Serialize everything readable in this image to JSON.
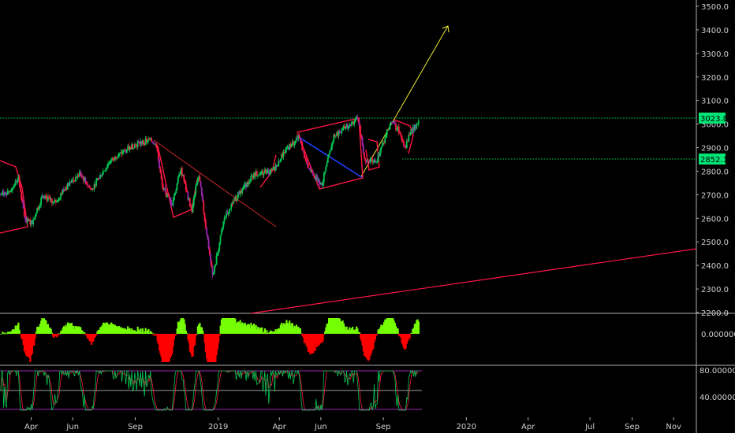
{
  "chart_data": [
    {
      "type": "candlestick",
      "pane": "price",
      "y_ticks": [
        2200,
        2300,
        2400,
        2500,
        2600,
        2700,
        2800,
        2900,
        3000,
        3100,
        3200,
        3300,
        3400,
        3500
      ],
      "y_tick_labels": [
        "2200.0",
        "2300.0",
        "2400.0",
        "2500.0",
        "2600.0",
        "2700.0",
        "2800.0",
        "2900.0",
        "3000.0",
        "3100.0",
        "3200.0",
        "3300.0",
        "3400.0",
        "3500.0"
      ],
      "ylim": [
        2190,
        3510
      ],
      "price_labels": [
        {
          "value": 3023.8,
          "label": "3023.8"
        },
        {
          "value": 2852.1,
          "label": "2852.1"
        }
      ],
      "close_path": [
        [
          "2018-02-15",
          2700
        ],
        [
          "2018-03-01",
          2720
        ],
        [
          "2018-03-13",
          2770
        ],
        [
          "2018-03-23",
          2590
        ],
        [
          "2018-04-02",
          2580
        ],
        [
          "2018-04-18",
          2700
        ],
        [
          "2018-05-04",
          2660
        ],
        [
          "2018-05-21",
          2730
        ],
        [
          "2018-06-12",
          2790
        ],
        [
          "2018-06-28",
          2720
        ],
        [
          "2018-07-25",
          2840
        ],
        [
          "2018-08-29",
          2910
        ],
        [
          "2018-09-20",
          2930
        ],
        [
          "2018-10-01",
          2925
        ],
        [
          "2018-10-11",
          2730
        ],
        [
          "2018-10-25",
          2660
        ],
        [
          "2018-11-07",
          2810
        ],
        [
          "2018-11-23",
          2630
        ],
        [
          "2018-12-03",
          2790
        ],
        [
          "2018-12-24",
          2350
        ],
        [
          "2019-01-10",
          2600
        ],
        [
          "2019-02-01",
          2710
        ],
        [
          "2019-02-25",
          2790
        ],
        [
          "2019-03-22",
          2800
        ],
        [
          "2019-04-10",
          2890
        ],
        [
          "2019-04-30",
          2945
        ],
        [
          "2019-05-13",
          2810
        ],
        [
          "2019-06-03",
          2745
        ],
        [
          "2019-06-20",
          2950
        ],
        [
          "2019-07-26",
          3025
        ],
        [
          "2019-08-05",
          2840
        ],
        [
          "2019-08-23",
          2850
        ],
        [
          "2019-09-12",
          3010
        ],
        [
          "2019-09-25",
          2970
        ],
        [
          "2019-10-02",
          2890
        ],
        [
          "2019-10-11",
          2970
        ],
        [
          "2019-10-24",
          3010
        ]
      ],
      "x_ticks": [
        {
          "date": "2018-04-01",
          "label": "Apr"
        },
        {
          "date": "2018-06-01",
          "label": "Jun"
        },
        {
          "date": "2018-09-01",
          "label": "Sep"
        },
        {
          "date": "2019-01-01",
          "label": "2019"
        },
        {
          "date": "2019-04-01",
          "label": "Apr"
        },
        {
          "date": "2019-06-01",
          "label": "Jun"
        },
        {
          "date": "2019-09-01",
          "label": "Sep"
        },
        {
          "date": "2020-01-01",
          "label": "2020"
        },
        {
          "date": "2020-04-01",
          "label": "Apr"
        },
        {
          "date": "2020-07-01",
          "label": "Jul"
        },
        {
          "date": "2020-09-01",
          "label": "Sep"
        },
        {
          "date": "2020-11-01",
          "label": "Nov"
        }
      ],
      "xlim": [
        "2018-02-14",
        "2020-12-01"
      ]
    },
    {
      "type": "area",
      "pane": "oscillator",
      "y_tick_labels": [
        "0.000000"
      ],
      "positive_color": "#76ff03",
      "negative_color": "#ff0000"
    },
    {
      "type": "line",
      "pane": "stochastic",
      "y_tick_labels": [
        "80.000000",
        "40.000000"
      ],
      "series_colors": [
        "#00c853",
        "#ff1744"
      ]
    }
  ],
  "colors": {
    "background": "#000000",
    "candle_up": "#00c853",
    "candle_down": "#ff1744",
    "candle_mid": "#9c27b0",
    "horizontal_line": "#00c853",
    "label_bg": "#00e676",
    "trend_red": "#ff1744",
    "trend_blue": "#1e40ff",
    "projection": "#eeee33"
  }
}
